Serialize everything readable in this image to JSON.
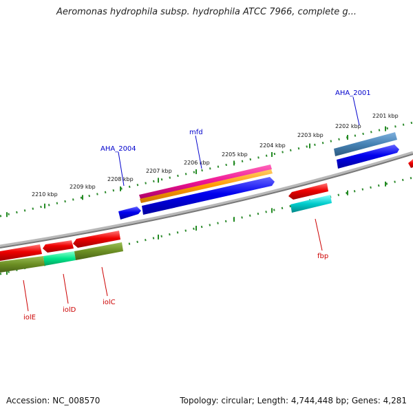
{
  "header": {
    "title": "Aeromonas hydrophila subsp. hydrophila ATCC 7966, complete g..."
  },
  "footer": {
    "accession": "Accession: NC_008570",
    "summary": "Topology: circular; Length: 4,744,448 bp; Genes: 4,281"
  },
  "ruler": {
    "ticks": [
      "2201 kbp",
      "2202 kbp",
      "2203 kbp",
      "2204 kbp",
      "2205 kbp",
      "2206 kbp",
      "2207 kbp",
      "2208 kbp",
      "2209 kbp",
      "2210 kbp"
    ]
  },
  "genes": {
    "forward": [
      {
        "label": "AHA_2001",
        "color": "#0000cc"
      },
      {
        "label": "mfd",
        "color": "#0000cc"
      },
      {
        "label": "AHA_2004",
        "color": "#0000cc"
      }
    ],
    "reverse": [
      {
        "label": "fbp",
        "color": "#cc0000"
      },
      {
        "label": "iolC",
        "color": "#cc0000"
      },
      {
        "label": "iolD",
        "color": "#cc0000"
      },
      {
        "label": "iolE",
        "color": "#cc0000"
      }
    ]
  },
  "colors": {
    "forward_cds": "#0000ee",
    "reverse_cds": "#ee0000",
    "backbone": "#808080",
    "ticks": "#228b22",
    "magenta_feature": "#ee1493",
    "orange_feature": "#ff9900",
    "steelblue_feature": "#4682b4",
    "cyan_feature": "#00cccc",
    "olive_feature": "#6b8e23",
    "spring_feature": "#00e68a"
  }
}
